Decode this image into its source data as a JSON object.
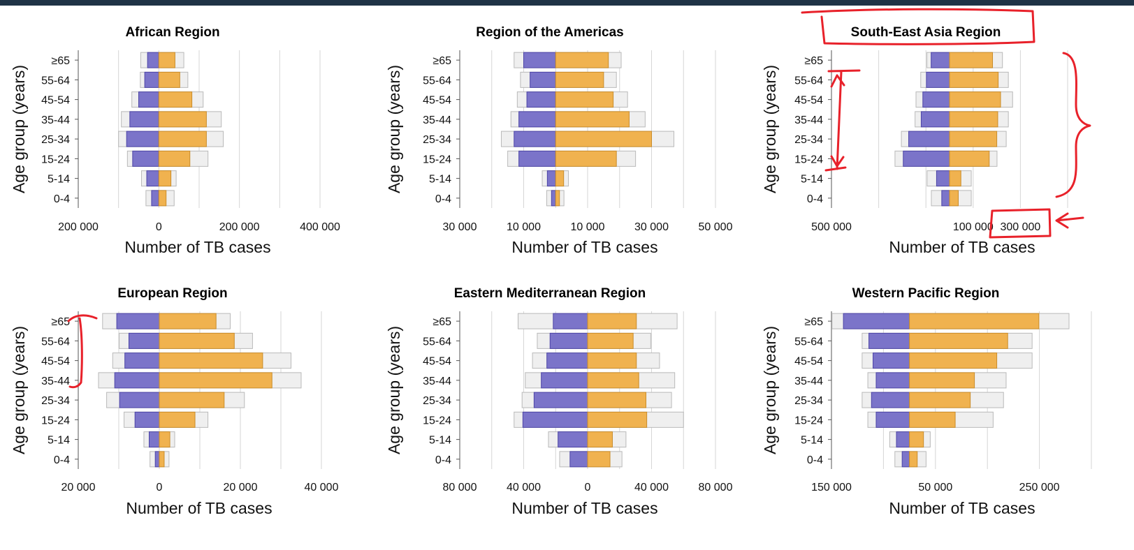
{
  "colors": {
    "male": "#7b74c9",
    "male_stroke": "#4d45a6",
    "female": "#f0b24f",
    "female_stroke": "#c98c2a",
    "estimate": "#efefef",
    "estimate_stroke": "#b9b9b9",
    "grid": "#d6d6d6",
    "annotation": "#e8212a"
  },
  "chart_data": [
    {
      "type": "bar",
      "orientation": "horizontal-population-pyramid",
      "title": "African Region",
      "xlabel": "Number of TB cases",
      "ylabel": "Age group (years)",
      "categories": [
        "0-4",
        "5-14",
        "15-24",
        "25-34",
        "35-44",
        "45-54",
        "55-64",
        "≥65"
      ],
      "xlim": [
        -200000,
        400000
      ],
      "gridlines": [
        -200000,
        -100000,
        0,
        100000,
        200000,
        300000,
        400000
      ],
      "xticks": [
        {
          "value": -200000,
          "label": "200 000"
        },
        {
          "value": 0,
          "label": "0"
        },
        {
          "value": 200000,
          "label": "200 000"
        },
        {
          "value": 400000,
          "label": "400 000"
        }
      ],
      "series": [
        {
          "name": "",
          "role": "male-notified",
          "values": [
            18000,
            30000,
            65000,
            80000,
            72000,
            50000,
            35000,
            28000
          ]
        },
        {
          "name": "",
          "role": "female-notified",
          "values": [
            18000,
            30000,
            77000,
            118000,
            118000,
            82000,
            52000,
            40000
          ]
        },
        {
          "name": "",
          "role": "male-estimated",
          "values": [
            32000,
            43000,
            78000,
            100000,
            93000,
            67000,
            46000,
            45000
          ]
        },
        {
          "name": "",
          "role": "female-estimated",
          "values": [
            38000,
            43000,
            122000,
            160000,
            155000,
            110000,
            72000,
            62000
          ]
        }
      ]
    },
    {
      "type": "bar",
      "orientation": "horizontal-population-pyramid",
      "title": "Region of the Americas",
      "xlabel": "Number of TB cases",
      "ylabel": "Age group (years)",
      "categories": [
        "0-4",
        "5-14",
        "15-24",
        "25-34",
        "35-44",
        "45-54",
        "55-64",
        "≥65"
      ],
      "xlim": [
        -30000,
        50000
      ],
      "gridlines": [
        -30000,
        -20000,
        -10000,
        0,
        10000,
        20000,
        30000,
        40000,
        50000
      ],
      "xticks": [
        {
          "value": -30000,
          "label": "30 000"
        },
        {
          "value": -10000,
          "label": "10 000"
        },
        {
          "value": 10000,
          "label": "10 000"
        },
        {
          "value": 30000,
          "label": "30 000"
        },
        {
          "value": 50000,
          "label": "50 000"
        }
      ],
      "series": [
        {
          "name": "",
          "role": "male-notified",
          "values": [
            1300,
            2600,
            11500,
            13000,
            11500,
            9000,
            8000,
            10000
          ]
        },
        {
          "name": "",
          "role": "female-notified",
          "values": [
            1200,
            2500,
            19000,
            30000,
            23000,
            18000,
            15000,
            16500
          ]
        },
        {
          "name": "",
          "role": "male-estimated",
          "values": [
            2800,
            4200,
            15000,
            17000,
            14000,
            12000,
            11000,
            13000
          ]
        },
        {
          "name": "",
          "role": "female-estimated",
          "values": [
            2600,
            4000,
            25000,
            37000,
            28000,
            22500,
            19000,
            20500
          ]
        }
      ]
    },
    {
      "type": "bar",
      "orientation": "horizontal-population-pyramid",
      "title": "South-East Asia Region",
      "xlabel": "Number of TB cases",
      "ylabel": "Age group (years)",
      "categories": [
        "0-4",
        "5-14",
        "15-24",
        "25-34",
        "35-44",
        "45-54",
        "55-64",
        "≥65"
      ],
      "xlim": [
        -500000,
        500000
      ],
      "gridlines": [
        -500000,
        -300000,
        -100000,
        100000,
        300000,
        500000
      ],
      "xticks": [
        {
          "value": -500000,
          "label": "500 000"
        },
        {
          "value": 100000,
          "label": "100 000"
        },
        {
          "value": 300000,
          "label": "300 000"
        }
      ],
      "series": [
        {
          "name": "",
          "role": "male-notified",
          "values": [
            33000,
            55000,
            196000,
            173000,
            120000,
            113000,
            98000,
            78000
          ]
        },
        {
          "name": "",
          "role": "female-notified",
          "values": [
            37000,
            48000,
            168000,
            200000,
            204000,
            216000,
            206000,
            182000
          ]
        },
        {
          "name": "",
          "role": "male-estimated",
          "values": [
            77000,
            95000,
            231000,
            204000,
            146000,
            142000,
            122000,
            96000
          ]
        },
        {
          "name": "",
          "role": "female-estimated",
          "values": [
            92000,
            92000,
            201000,
            240000,
            249000,
            267000,
            249000,
            224000
          ]
        }
      ]
    },
    {
      "type": "bar",
      "orientation": "horizontal-population-pyramid",
      "title": "European Region",
      "xlabel": "Number of TB cases",
      "ylabel": "Age group (years)",
      "categories": [
        "0-4",
        "5-14",
        "15-24",
        "25-34",
        "35-44",
        "45-54",
        "55-64",
        "≥65"
      ],
      "xlim": [
        -20000,
        40000
      ],
      "gridlines": [
        -20000,
        -10000,
        0,
        10000,
        20000,
        30000,
        40000
      ],
      "xticks": [
        {
          "value": -20000,
          "label": "20 000"
        },
        {
          "value": 0,
          "label": "0"
        },
        {
          "value": 20000,
          "label": "20 000"
        },
        {
          "value": 40000,
          "label": "40 000"
        }
      ],
      "series": [
        {
          "name": "",
          "role": "male-notified",
          "values": [
            1000,
            2500,
            6000,
            9800,
            11000,
            8500,
            7500,
            10500
          ]
        },
        {
          "name": "",
          "role": "female-notified",
          "values": [
            1200,
            2600,
            8800,
            16000,
            27800,
            25500,
            18500,
            14000
          ]
        },
        {
          "name": "",
          "role": "male-estimated",
          "values": [
            2300,
            3800,
            8700,
            13000,
            15000,
            11500,
            9900,
            14000
          ]
        },
        {
          "name": "",
          "role": "female-estimated",
          "values": [
            2400,
            3800,
            12000,
            21000,
            35000,
            32500,
            23000,
            17500
          ]
        }
      ]
    },
    {
      "type": "bar",
      "orientation": "horizontal-population-pyramid",
      "title": "Eastern Mediterranean Region",
      "xlabel": "Number of TB cases",
      "ylabel": "Age group (years)",
      "categories": [
        "0-4",
        "5-14",
        "15-24",
        "25-34",
        "35-44",
        "45-54",
        "55-64",
        "≥65"
      ],
      "xlim": [
        -80000,
        80000
      ],
      "gridlines": [
        -80000,
        -60000,
        -40000,
        -20000,
        0,
        20000,
        40000,
        60000,
        80000
      ],
      "xticks": [
        {
          "value": -80000,
          "label": "80 000"
        },
        {
          "value": -40000,
          "label": "40 000"
        },
        {
          "value": 0,
          "label": "0"
        },
        {
          "value": 40000,
          "label": "40 000"
        },
        {
          "value": 80000,
          "label": "80 000"
        }
      ],
      "series": [
        {
          "name": "",
          "role": "male-notified",
          "values": [
            11000,
            18500,
            40500,
            33500,
            29000,
            25500,
            23500,
            21500
          ]
        },
        {
          "name": "",
          "role": "female-notified",
          "values": [
            14000,
            15500,
            37000,
            36500,
            32000,
            30500,
            28500,
            30500
          ]
        },
        {
          "name": "",
          "role": "male-estimated",
          "values": [
            17500,
            24500,
            46000,
            41000,
            39000,
            34500,
            31500,
            43500
          ]
        },
        {
          "name": "",
          "role": "female-estimated",
          "values": [
            21500,
            24000,
            60000,
            52500,
            54500,
            45000,
            39500,
            56000
          ]
        }
      ]
    },
    {
      "type": "bar",
      "orientation": "horizontal-population-pyramid",
      "title": "Western Pacific Region",
      "xlabel": "Number of TB cases",
      "ylabel": "Age group (years)",
      "categories": [
        "0-4",
        "5-14",
        "15-24",
        "25-34",
        "35-44",
        "45-54",
        "55-64",
        "≥65"
      ],
      "xlim": [
        -150000,
        350000
      ],
      "gridlines": [
        -150000,
        -50000,
        50000,
        150000,
        250000,
        350000
      ],
      "xticks": [
        {
          "value": -150000,
          "label": "150 000"
        },
        {
          "value": 50000,
          "label": "50 000"
        },
        {
          "value": 250000,
          "label": "250 000"
        }
      ],
      "series": [
        {
          "name": "",
          "role": "male-notified",
          "values": [
            14000,
            25000,
            64000,
            73000,
            64000,
            70000,
            78000,
            127000
          ]
        },
        {
          "name": "",
          "role": "female-notified",
          "values": [
            15000,
            27000,
            88000,
            117000,
            125000,
            168000,
            189000,
            249000
          ]
        },
        {
          "name": "",
          "role": "male-estimated",
          "values": [
            28000,
            38000,
            80000,
            91000,
            80000,
            91000,
            91000,
            149000
          ]
        },
        {
          "name": "",
          "role": "female-estimated",
          "values": [
            32000,
            40000,
            161000,
            181000,
            186000,
            236000,
            236000,
            307000
          ]
        }
      ]
    }
  ]
}
